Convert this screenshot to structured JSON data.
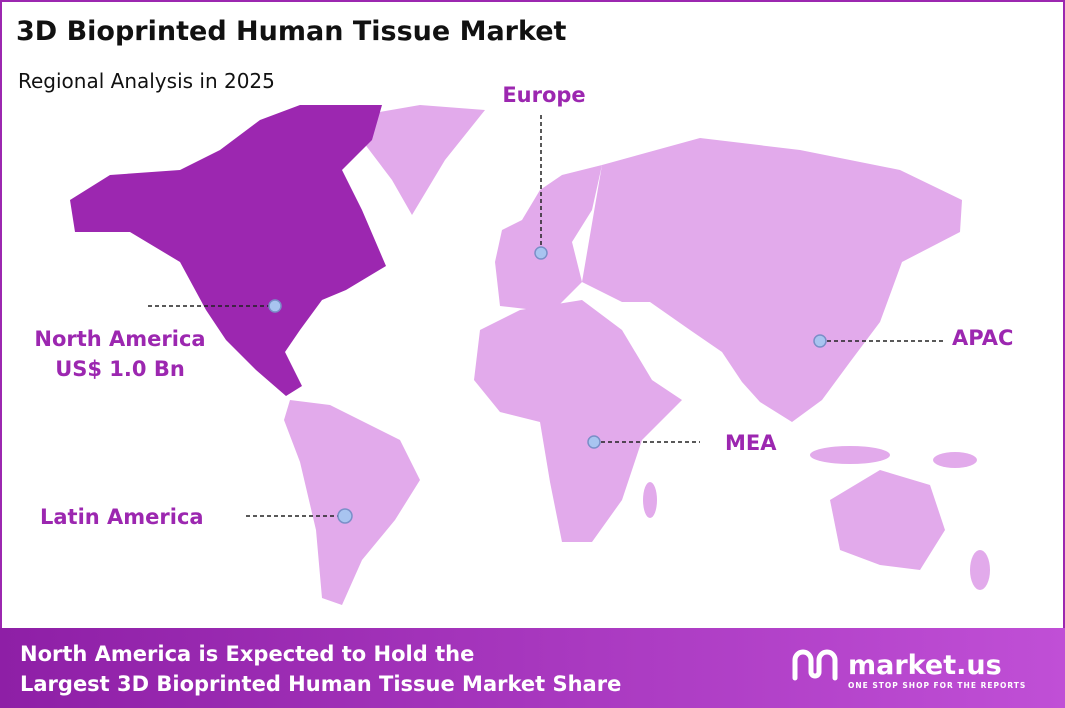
{
  "header": {
    "title": "3D Bioprinted Human Tissue Market",
    "subtitle": "Regional Analysis in 2025"
  },
  "regions": [
    {
      "name": "North America",
      "value_label": "US$ 1.0 Bn"
    },
    {
      "name": "Europe"
    },
    {
      "name": "APAC"
    },
    {
      "name": "MEA"
    },
    {
      "name": "Latin America"
    }
  ],
  "footer": {
    "lines": [
      "North America is Expected to Hold the",
      "Largest 3D Bioprinted Human Tissue Market Share"
    ],
    "brand": "market.us",
    "tagline": "ONE STOP SHOP FOR THE REPORTS"
  }
}
